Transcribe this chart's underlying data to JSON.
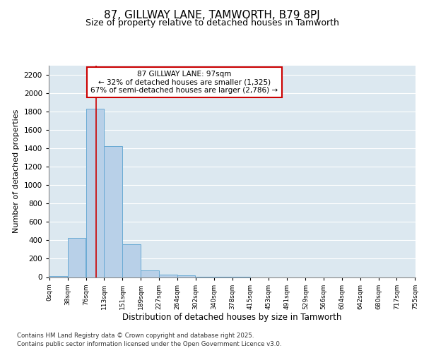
{
  "title_line1": "87, GILLWAY LANE, TAMWORTH, B79 8PJ",
  "title_line2": "Size of property relative to detached houses in Tamworth",
  "xlabel": "Distribution of detached houses by size in Tamworth",
  "ylabel": "Number of detached properties",
  "bar_color": "#b8d0e8",
  "bar_edge_color": "#6aaad4",
  "plot_bg_color": "#dce8f0",
  "grid_color": "#ffffff",
  "annotation_box_edgecolor": "#cc0000",
  "annotation_line_color": "#cc0000",
  "property_line_x": 97,
  "annotation_text_line1": "87 GILLWAY LANE: 97sqm",
  "annotation_text_line2": "← 32% of detached houses are smaller (1,325)",
  "annotation_text_line3": "67% of semi-detached houses are larger (2,786) →",
  "footnote_line1": "Contains HM Land Registry data © Crown copyright and database right 2025.",
  "footnote_line2": "Contains public sector information licensed under the Open Government Licence v3.0.",
  "bin_edges": [
    0,
    38,
    76,
    113,
    151,
    189,
    227,
    264,
    302,
    340,
    378,
    415,
    453,
    491,
    529,
    566,
    604,
    642,
    680,
    717,
    755
  ],
  "bin_labels": [
    "0sqm",
    "38sqm",
    "76sqm",
    "113sqm",
    "151sqm",
    "189sqm",
    "227sqm",
    "264sqm",
    "302sqm",
    "340sqm",
    "378sqm",
    "415sqm",
    "453sqm",
    "491sqm",
    "529sqm",
    "566sqm",
    "604sqm",
    "642sqm",
    "680sqm",
    "717sqm",
    "755sqm"
  ],
  "bar_heights": [
    10,
    425,
    1830,
    1420,
    355,
    75,
    30,
    20,
    4,
    2,
    1,
    0,
    0,
    0,
    0,
    0,
    0,
    0,
    0,
    0
  ],
  "ylim": [
    0,
    2300
  ],
  "yticks": [
    0,
    200,
    400,
    600,
    800,
    1000,
    1200,
    1400,
    1600,
    1800,
    2000,
    2200
  ]
}
